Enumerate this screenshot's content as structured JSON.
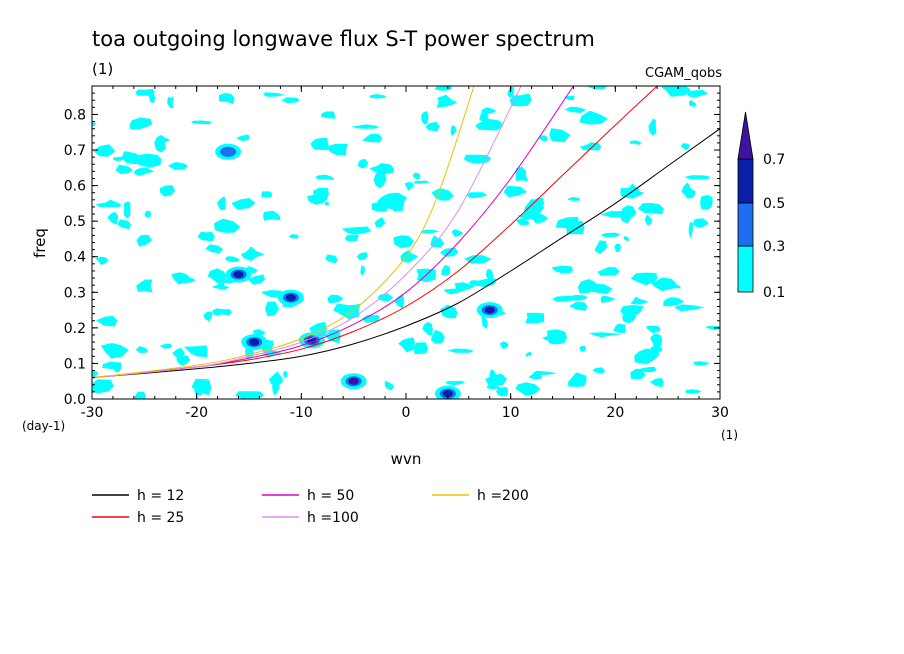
{
  "chart_data": {
    "type": "contour",
    "title": "toa outgoing longwave flux S-T power spectrum",
    "subtitle": "(1)",
    "label_right": "CGAM_qobs",
    "xlabel": "wvn",
    "ylabel": "freq",
    "x_unit": "(1)",
    "y_unit": "(day-1)",
    "xlim": [
      -30,
      30
    ],
    "ylim": [
      0,
      0.88
    ],
    "x_ticks": [
      "-30",
      "-20",
      "-10",
      "0",
      "10",
      "20",
      "30"
    ],
    "y_ticks": [
      "0.0",
      "0.1",
      "0.2",
      "0.3",
      "0.4",
      "0.5",
      "0.6",
      "0.7",
      "0.8"
    ],
    "colorbar": {
      "levels": [
        "0.1",
        "0.3",
        "0.5",
        "0.7"
      ],
      "colors": [
        "#00ffff",
        "#1e6ff0",
        "#0a1ea8",
        "#3c14a0"
      ]
    },
    "series": [
      {
        "name": "h = 12",
        "color": "#000000",
        "x": [
          -30,
          -20,
          -15,
          -10,
          -5,
          0,
          5,
          10,
          15,
          20,
          25,
          30
        ],
        "y": [
          0.06,
          0.085,
          0.1,
          0.12,
          0.155,
          0.205,
          0.27,
          0.36,
          0.455,
          0.55,
          0.655,
          0.76
        ]
      },
      {
        "name": "h = 25",
        "color": "#ff0000",
        "x": [
          -30,
          -20,
          -15,
          -10,
          -5,
          0,
          5,
          10,
          15,
          20,
          24
        ],
        "y": [
          0.06,
          0.09,
          0.11,
          0.14,
          0.19,
          0.26,
          0.36,
          0.49,
          0.63,
          0.77,
          0.88
        ]
      },
      {
        "name": "h = 50",
        "color": "#e000c0",
        "x": [
          -30,
          -20,
          -15,
          -10,
          -5,
          0,
          5,
          10,
          16
        ],
        "y": [
          0.06,
          0.09,
          0.115,
          0.15,
          0.21,
          0.3,
          0.44,
          0.62,
          0.88
        ]
      },
      {
        "name": "h =100",
        "color": "#d890e8",
        "x": [
          -30,
          -20,
          -15,
          -10,
          -5,
          0,
          5,
          11
        ],
        "y": [
          0.06,
          0.09,
          0.12,
          0.16,
          0.23,
          0.35,
          0.53,
          0.88
        ]
      },
      {
        "name": "h =200",
        "color": "#f0c000",
        "x": [
          -30,
          -20,
          -15,
          -10,
          -5,
          0,
          3,
          6.5
        ],
        "y": [
          0.06,
          0.095,
          0.125,
          0.17,
          0.25,
          0.4,
          0.57,
          0.88
        ]
      }
    ],
    "blobs": [
      {
        "x": -5,
        "y": 0.05,
        "level": "0.7"
      },
      {
        "x": 4,
        "y": 0.015,
        "level": "0.5"
      },
      {
        "x": -11,
        "y": 0.285,
        "level": "0.5"
      },
      {
        "x": 8,
        "y": 0.25,
        "level": "0.5"
      },
      {
        "x": -14.5,
        "y": 0.16,
        "level": "0.5"
      },
      {
        "x": -9,
        "y": 0.165,
        "level": "0.5"
      },
      {
        "x": -16,
        "y": 0.35,
        "level": "0.5"
      },
      {
        "x": -17,
        "y": 0.695,
        "level": "0.3"
      }
    ]
  }
}
